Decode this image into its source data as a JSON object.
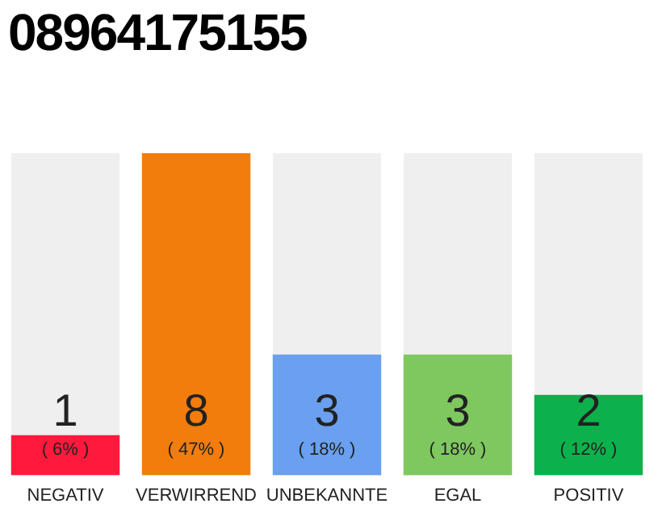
{
  "chart_data": {
    "type": "bar",
    "title": "08964175155",
    "categories": [
      "NEGATIV",
      "VERWIRREND",
      "UNBEKANNTE",
      "EGAL",
      "POSITIV"
    ],
    "values": [
      1,
      8,
      3,
      3,
      2
    ],
    "colors": [
      "#ff1a3d",
      "#f27c0c",
      "#6aa0ef",
      "#7ec85f",
      "#0cb14b"
    ],
    "ylim": [
      0,
      8
    ],
    "tick_labels": "x",
    "data_labels": true,
    "grid": false,
    "legend": false,
    "annotations": [
      "( 6% )",
      "( 47% )",
      "( 18% )",
      "( 18% )",
      "( 12% )"
    ]
  }
}
